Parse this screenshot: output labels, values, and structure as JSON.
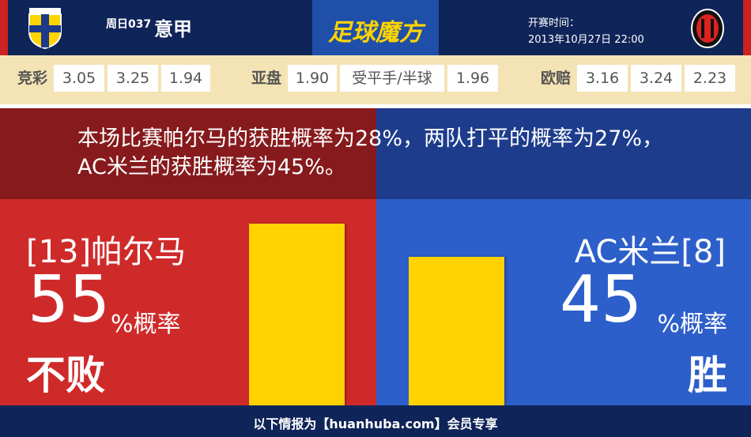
{
  "header": {
    "match_no": "周日037",
    "league": "意甲",
    "brand": "足球魔方",
    "kickoff_label": "开赛时间：",
    "kickoff_time": "2013年10月27日 22:00"
  },
  "odds": {
    "jingcai": {
      "label": "竞彩",
      "values": [
        "3.05",
        "3.25",
        "1.94"
      ]
    },
    "yapan": {
      "label": "亚盘",
      "values": [
        "1.90",
        "受平手/半球",
        "1.96"
      ]
    },
    "oupei": {
      "label": "欧赔",
      "values": [
        "3.16",
        "3.24",
        "2.23"
      ]
    }
  },
  "summary": "本场比赛帕尔马的获胜概率为28%，两队打平的概率为27%，AC米兰的获胜概率为45%。",
  "left": {
    "team": "[13]帕尔马",
    "percent": 55,
    "unit": "%概率",
    "outcome": "不败",
    "bar_color": "#ffd200"
  },
  "right": {
    "team": "AC米兰[8]",
    "percent": 45,
    "unit": "%概率",
    "outcome": "胜",
    "bar_color": "#ffd200"
  },
  "footer": "以下情报为【huanhuba.com】会员专享"
}
